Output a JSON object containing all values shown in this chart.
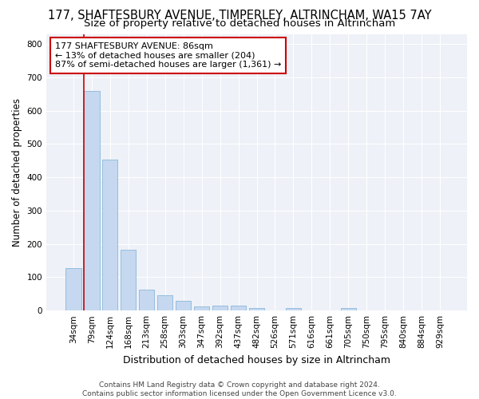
{
  "title": "177, SHAFTESBURY AVENUE, TIMPERLEY, ALTRINCHAM, WA15 7AY",
  "subtitle": "Size of property relative to detached houses in Altrincham",
  "xlabel": "Distribution of detached houses by size in Altrincham",
  "ylabel": "Number of detached properties",
  "categories": [
    "34sqm",
    "79sqm",
    "124sqm",
    "168sqm",
    "213sqm",
    "258sqm",
    "303sqm",
    "347sqm",
    "392sqm",
    "437sqm",
    "482sqm",
    "526sqm",
    "571sqm",
    "616sqm",
    "661sqm",
    "705sqm",
    "750sqm",
    "795sqm",
    "840sqm",
    "884sqm",
    "929sqm"
  ],
  "values": [
    128,
    660,
    452,
    183,
    62,
    46,
    28,
    12,
    14,
    14,
    8,
    0,
    7,
    0,
    0,
    7,
    0,
    0,
    0,
    0,
    0
  ],
  "bar_color": "#c5d8f0",
  "bar_edge_color": "#7aaed6",
  "vline_color": "#cc0000",
  "annotation_text": "177 SHAFTESBURY AVENUE: 86sqm\n← 13% of detached houses are smaller (204)\n87% of semi-detached houses are larger (1,361) →",
  "annotation_box_facecolor": "#ffffff",
  "annotation_box_edgecolor": "#cc0000",
  "ylim": [
    0,
    830
  ],
  "yticks": [
    0,
    100,
    200,
    300,
    400,
    500,
    600,
    700,
    800
  ],
  "bg_color": "#ffffff",
  "plot_bg_color": "#eef1f7",
  "footer": "Contains HM Land Registry data © Crown copyright and database right 2024.\nContains public sector information licensed under the Open Government Licence v3.0.",
  "title_fontsize": 10.5,
  "subtitle_fontsize": 9.5,
  "xlabel_fontsize": 9,
  "ylabel_fontsize": 8.5,
  "tick_fontsize": 7.5,
  "annotation_fontsize": 8,
  "footer_fontsize": 6.5
}
